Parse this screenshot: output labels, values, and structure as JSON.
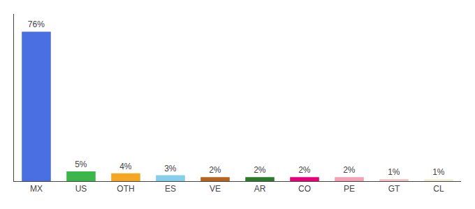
{
  "chart_data": {
    "type": "bar",
    "categories": [
      "MX",
      "US",
      "OTH",
      "ES",
      "VE",
      "AR",
      "CO",
      "PE",
      "GT",
      "CL"
    ],
    "values": [
      76,
      5,
      4,
      3,
      2,
      2,
      2,
      2,
      1,
      1
    ],
    "value_labels": [
      "76%",
      "5%",
      "4%",
      "3%",
      "2%",
      "2%",
      "2%",
      "2%",
      "1%",
      "1%"
    ],
    "colors": [
      "#4a6fe3",
      "#3cb54a",
      "#f5a623",
      "#87ceeb",
      "#b5651d",
      "#2d7a2d",
      "#e8007a",
      "#f4a0b5",
      "#f4c0c0",
      "#f0f0d0"
    ],
    "ylim": [
      0,
      85
    ],
    "data_labels": true,
    "tick_labels": "x",
    "grid": false
  }
}
